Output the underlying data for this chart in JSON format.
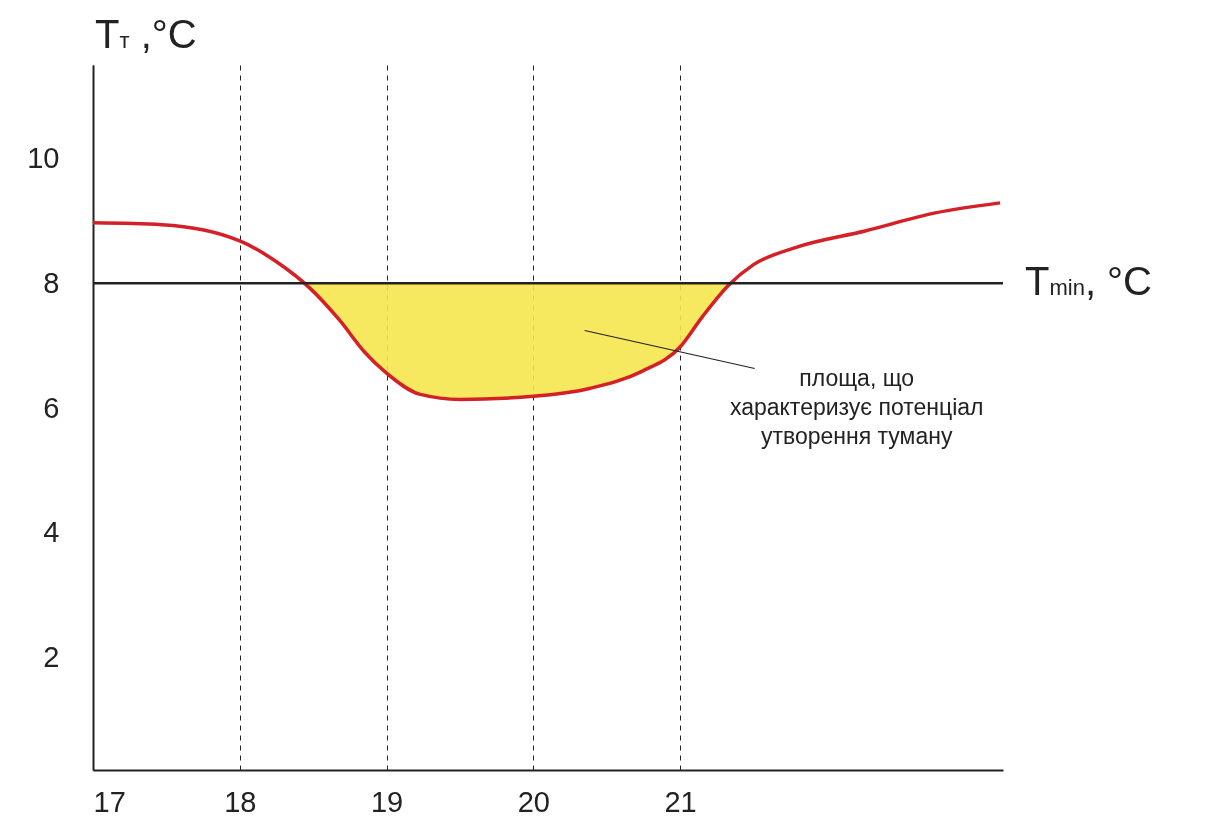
{
  "chart_data": {
    "type": "line",
    "ylabel": "T$_{т}$ ,°C",
    "xlim": [
      17,
      23.2
    ],
    "xticks": [
      17,
      18,
      19,
      20,
      21
    ],
    "ylim": [
      0.2,
      11.5
    ],
    "yticks": [
      2,
      4,
      6,
      8,
      10
    ],
    "grid": "x",
    "line_style": "solid",
    "series": [
      {
        "color": "#d42027",
        "x": [
          17,
          17.47,
          18,
          18.26,
          18.47,
          18.68,
          18.85,
          19,
          19.23,
          19.5,
          20,
          20.39,
          20.74,
          21,
          21.15,
          21.33,
          21.5,
          21.78,
          22.26,
          22.74,
          23.18
        ],
        "values": [
          8.97,
          8.94,
          8.68,
          8.33,
          7.94,
          7.41,
          6.9,
          6.56,
          6.22,
          6.14,
          6.19,
          6.32,
          6.59,
          6.98,
          7.46,
          7.97,
          8.3,
          8.57,
          8.84,
          9.13,
          9.29
        ],
        "lower": [
          null,
          null,
          null,
          null,
          7.94,
          7.41,
          6.9,
          6.56,
          6.22,
          6.14,
          6.19,
          6.32,
          6.59,
          6.98,
          7.46,
          7.97,
          null,
          null,
          null,
          null,
          null
        ],
        "upper": [
          null,
          null,
          null,
          null,
          8,
          8,
          8,
          8,
          8,
          8,
          8,
          8,
          8,
          8,
          8,
          8,
          null,
          null,
          null,
          null,
          null
        ]
      }
    ],
    "ref_lines": [
      {
        "axis": "y",
        "value": 8,
        "label": "T$_{min}$, °C",
        "color": "#222222"
      }
    ],
    "annotations": [
      "площа, що\nхарактеризує потенціал\nутворення туману"
    ]
  }
}
